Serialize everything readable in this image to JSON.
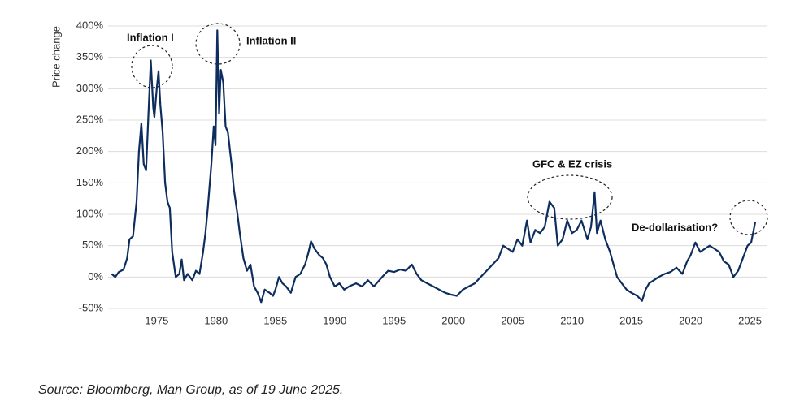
{
  "chart_data": {
    "type": "line",
    "y_label": "Price change",
    "source": "Source: Bloomberg, Man Group, as of 19 June 2025.",
    "annotations": [
      "Inflation I",
      "Inflation II",
      "GFC & EZ crisis",
      "De-dollarisation?"
    ],
    "grid": true,
    "xlim": [
      1970.9,
      2026.4
    ],
    "xticks": [
      1975,
      1980,
      1985,
      1990,
      1995,
      2000,
      2005,
      2010,
      2015,
      2020,
      2025
    ],
    "ylim": [
      -50,
      400
    ],
    "yticks": [
      {
        "value": -50,
        "label": "-50%"
      },
      {
        "value": 0,
        "label": "0%"
      },
      {
        "value": 50,
        "label": "50%"
      },
      {
        "value": 100,
        "label": "100%"
      },
      {
        "value": 150,
        "label": "150%"
      },
      {
        "value": 200,
        "label": "200%"
      },
      {
        "value": 250,
        "label": "250%"
      },
      {
        "value": 300,
        "label": "300%"
      },
      {
        "value": 350,
        "label": "350%"
      },
      {
        "value": 400,
        "label": "400%"
      }
    ],
    "series": [
      {
        "color": "#0d2d5e",
        "x": [
          1971.2,
          1971.5,
          1971.8,
          1972.2,
          1972.5,
          1972.7,
          1973.0,
          1973.3,
          1973.5,
          1973.7,
          1973.9,
          1974.1,
          1974.3,
          1974.5,
          1974.7,
          1974.8,
          1975.0,
          1975.15,
          1975.3,
          1975.5,
          1975.7,
          1975.9,
          1976.1,
          1976.3,
          1976.6,
          1976.9,
          1977.1,
          1977.3,
          1977.6,
          1978.0,
          1978.3,
          1978.6,
          1978.9,
          1979.1,
          1979.3,
          1979.6,
          1979.8,
          1979.95,
          1980.1,
          1980.25,
          1980.4,
          1980.6,
          1980.8,
          1981.0,
          1981.3,
          1981.5,
          1981.8,
          1982.0,
          1982.3,
          1982.6,
          1982.9,
          1983.2,
          1983.5,
          1983.8,
          1984.1,
          1984.5,
          1984.8,
          1985.0,
          1985.3,
          1985.6,
          1985.9,
          1986.3,
          1986.7,
          1987.1,
          1987.5,
          1987.8,
          1988.0,
          1988.3,
          1988.7,
          1989.0,
          1989.3,
          1989.6,
          1990.0,
          1990.4,
          1990.8,
          1991.2,
          1991.8,
          1992.3,
          1992.8,
          1993.3,
          1994.0,
          1994.5,
          1995.0,
          1995.5,
          1996.0,
          1996.5,
          1996.9,
          1997.3,
          1997.8,
          1998.3,
          1998.8,
          1999.3,
          1999.8,
          2000.3,
          2000.8,
          2001.3,
          2001.8,
          2002.3,
          2002.8,
          2003.3,
          2003.8,
          2004.2,
          2004.6,
          2005.0,
          2005.4,
          2005.8,
          2006.2,
          2006.5,
          2006.9,
          2007.3,
          2007.7,
          2008.1,
          2008.5,
          2008.8,
          2009.2,
          2009.6,
          2010.0,
          2010.4,
          2010.8,
          2011.3,
          2011.6,
          2011.9,
          2012.1,
          2012.4,
          2012.8,
          2013.2,
          2013.5,
          2013.8,
          2014.2,
          2014.6,
          2015.0,
          2015.5,
          2015.9,
          2016.2,
          2016.5,
          2016.9,
          2017.3,
          2017.8,
          2018.3,
          2018.8,
          2019.3,
          2019.7,
          2020.0,
          2020.4,
          2020.8,
          2021.2,
          2021.6,
          2022.0,
          2022.4,
          2022.8,
          2023.2,
          2023.6,
          2024.0,
          2024.4,
          2024.8,
          2025.1,
          2025.45
        ],
        "values": [
          5,
          0,
          8,
          12,
          30,
          60,
          65,
          120,
          200,
          245,
          180,
          170,
          260,
          345,
          270,
          255,
          300,
          328,
          275,
          230,
          150,
          120,
          110,
          40,
          0,
          5,
          28,
          -5,
          5,
          -5,
          10,
          5,
          40,
          70,
          110,
          180,
          240,
          210,
          393,
          260,
          330,
          310,
          240,
          230,
          180,
          140,
          100,
          70,
          30,
          10,
          20,
          -15,
          -25,
          -40,
          -20,
          -25,
          -30,
          -20,
          0,
          -10,
          -15,
          -25,
          0,
          5,
          20,
          40,
          57,
          45,
          35,
          30,
          20,
          0,
          -15,
          -10,
          -20,
          -15,
          -10,
          -15,
          -5,
          -15,
          0,
          10,
          8,
          12,
          10,
          20,
          5,
          -5,
          -10,
          -15,
          -20,
          -25,
          -28,
          -30,
          -20,
          -15,
          -10,
          0,
          10,
          20,
          30,
          50,
          45,
          40,
          60,
          50,
          90,
          55,
          75,
          70,
          80,
          120,
          110,
          50,
          60,
          90,
          70,
          75,
          90,
          60,
          80,
          135,
          70,
          90,
          60,
          40,
          20,
          0,
          -10,
          -20,
          -25,
          -30,
          -38,
          -20,
          -10,
          -5,
          0,
          5,
          8,
          15,
          5,
          25,
          35,
          55,
          40,
          45,
          50,
          45,
          40,
          25,
          20,
          0,
          10,
          30,
          50,
          55,
          88
        ]
      }
    ]
  }
}
